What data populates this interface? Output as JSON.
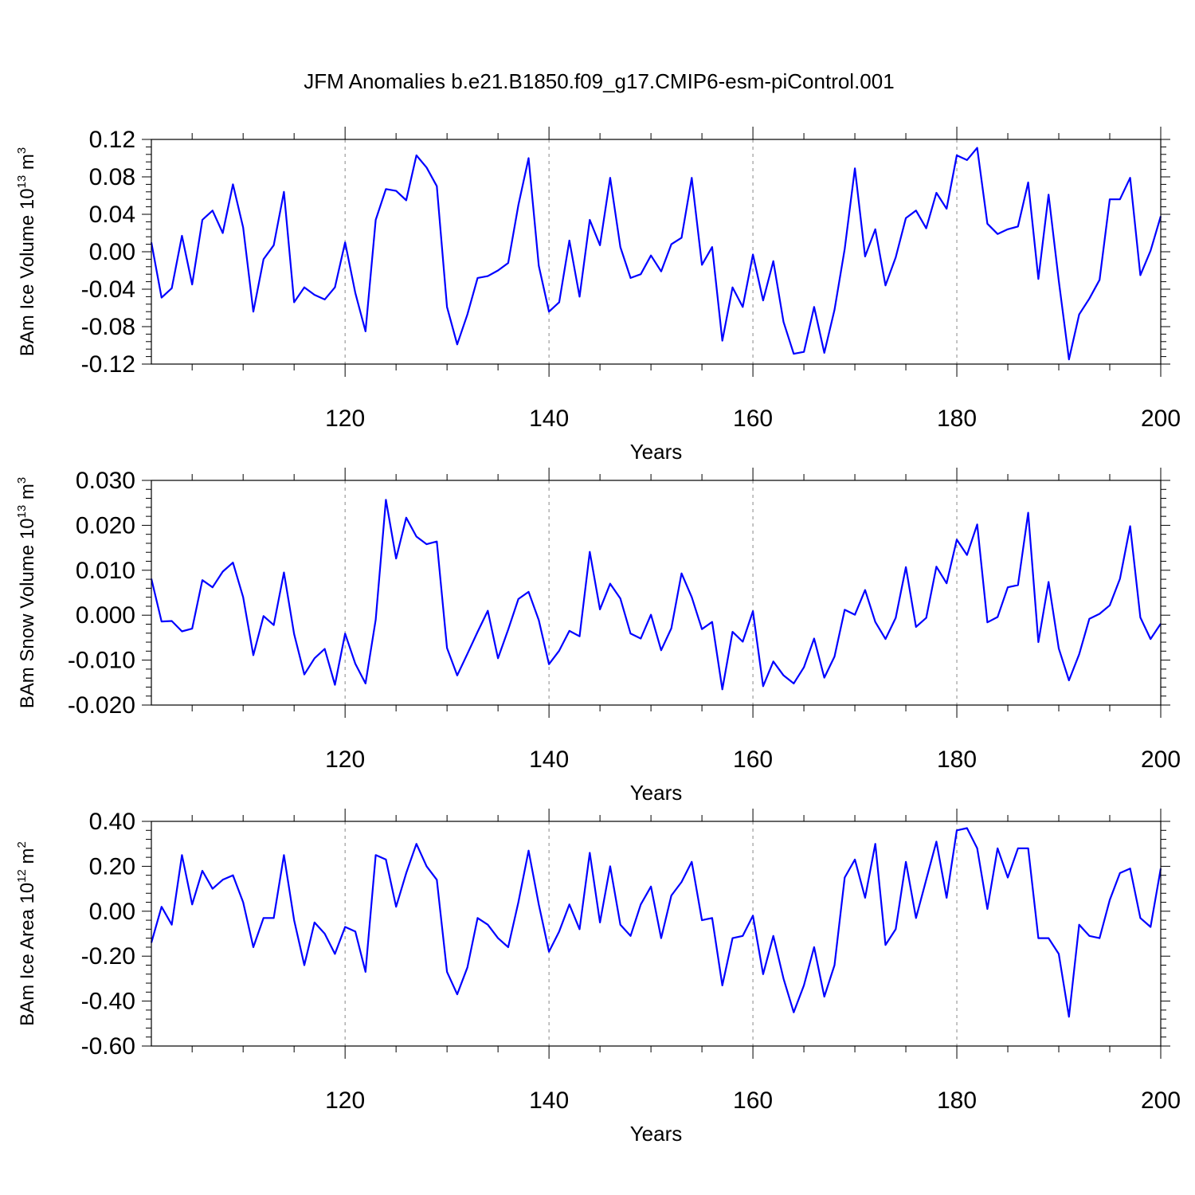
{
  "title": "JFM Anomalies b.e21.B1850.f09_g17.CMIP6-esm-piControl.001",
  "chart_data": [
    {
      "type": "line",
      "ylabel": "BAm Ice Volume 10",
      "ylabel_exp": "13",
      "ylabel_unit": " m",
      "ylabel_unit_exp": "3",
      "xlabel": "Years",
      "xlim": [
        101,
        200
      ],
      "ylim": [
        -0.12,
        0.12
      ],
      "xticks": [
        120,
        140,
        160,
        180,
        200
      ],
      "xtick_labels": [
        "120",
        "140",
        "160",
        "180",
        "200"
      ],
      "yticks": [
        -0.12,
        -0.08,
        -0.04,
        0.0,
        0.04,
        0.08,
        0.12
      ],
      "ytick_labels": [
        "-0.12",
        "-0.08",
        "-0.04",
        "0.00",
        "0.04",
        "0.08",
        "0.12"
      ],
      "x_start": 101,
      "values": [
        0.01,
        -0.049,
        -0.039,
        0.017,
        -0.035,
        0.034,
        0.044,
        0.02,
        0.072,
        0.026,
        -0.064,
        -0.008,
        0.007,
        0.064,
        -0.054,
        -0.038,
        -0.046,
        -0.051,
        -0.038,
        0.01,
        -0.044,
        -0.085,
        0.034,
        0.067,
        0.065,
        0.055,
        0.103,
        0.09,
        0.07,
        -0.059,
        -0.099,
        -0.067,
        -0.028,
        -0.026,
        -0.02,
        -0.012,
        0.05,
        0.1,
        -0.015,
        -0.064,
        -0.054,
        0.012,
        -0.048,
        0.034,
        0.007,
        0.079,
        0.005,
        -0.028,
        -0.024,
        -0.004,
        -0.021,
        0.008,
        0.015,
        0.079,
        -0.014,
        0.005,
        -0.095,
        -0.038,
        -0.059,
        -0.003,
        -0.052,
        -0.01,
        -0.075,
        -0.109,
        -0.107,
        -0.059,
        -0.108,
        -0.062,
        0.003,
        0.089,
        -0.005,
        0.024,
        -0.036,
        -0.006,
        0.036,
        0.044,
        0.025,
        0.063,
        0.046,
        0.103,
        0.098,
        0.111,
        0.03,
        0.019,
        0.024,
        0.027,
        0.074,
        -0.029,
        0.061,
        -0.031,
        -0.115,
        -0.067,
        -0.05,
        -0.03,
        0.056,
        0.056,
        0.079,
        -0.025,
        0.001,
        0.038
      ]
    },
    {
      "type": "line",
      "ylabel": "BAm Snow Volume 10",
      "ylabel_exp": "13",
      "ylabel_unit": " m",
      "ylabel_unit_exp": "3",
      "xlabel": "Years",
      "xlim": [
        101,
        200
      ],
      "ylim": [
        -0.02,
        0.03
      ],
      "xticks": [
        120,
        140,
        160,
        180,
        200
      ],
      "xtick_labels": [
        "120",
        "140",
        "160",
        "180",
        "200"
      ],
      "yticks": [
        -0.02,
        -0.01,
        0.0,
        0.01,
        0.02,
        0.03
      ],
      "ytick_labels": [
        "-0.020",
        "-0.010",
        "0.000",
        "0.010",
        "0.020",
        "0.030"
      ],
      "x_start": 101,
      "values": [
        0.0081,
        -0.0014,
        -0.0013,
        -0.0036,
        -0.003,
        0.0078,
        0.0062,
        0.0097,
        0.0117,
        0.004,
        -0.0089,
        -0.0002,
        -0.0022,
        0.0095,
        -0.0042,
        -0.0132,
        -0.0096,
        -0.0075,
        -0.0155,
        -0.0041,
        -0.0108,
        -0.0152,
        -0.001,
        0.0257,
        0.0126,
        0.0217,
        0.0175,
        0.0158,
        0.0164,
        -0.0073,
        -0.0134,
        -0.0086,
        -0.0037,
        0.001,
        -0.0096,
        -0.0032,
        0.0036,
        0.0052,
        -0.0011,
        -0.0109,
        -0.0079,
        -0.0035,
        -0.0047,
        0.0141,
        0.0013,
        0.007,
        0.0037,
        -0.0041,
        -0.0052,
        0.0001,
        -0.0078,
        -0.0029,
        0.0093,
        0.004,
        -0.0031,
        -0.0015,
        -0.0165,
        -0.0037,
        -0.0059,
        0.0009,
        -0.0158,
        -0.0103,
        -0.0134,
        -0.0152,
        -0.0116,
        -0.0052,
        -0.0139,
        -0.0092,
        0.0012,
        0.0001,
        0.0056,
        -0.0015,
        -0.0053,
        -0.0006,
        0.0107,
        -0.0026,
        -0.0006,
        0.0108,
        0.0071,
        0.0168,
        0.0134,
        0.0202,
        -0.0016,
        -0.0004,
        0.0062,
        0.0067,
        0.0228,
        -0.006,
        0.0074,
        -0.0074,
        -0.0145,
        -0.0087,
        -0.0008,
        0.0003,
        0.0022,
        0.0081,
        0.0198,
        -0.0005,
        -0.0053,
        -0.0019
      ]
    },
    {
      "type": "line",
      "ylabel": "BAm Ice Area 10",
      "ylabel_exp": "12",
      "ylabel_unit": " m",
      "ylabel_unit_exp": "2",
      "xlabel": "Years",
      "xlim": [
        101,
        200
      ],
      "ylim": [
        -0.6,
        0.4
      ],
      "xticks": [
        120,
        140,
        160,
        180,
        200
      ],
      "xtick_labels": [
        "120",
        "140",
        "160",
        "180",
        "200"
      ],
      "yticks": [
        -0.6,
        -0.4,
        -0.2,
        0.0,
        0.2,
        0.4
      ],
      "ytick_labels": [
        "-0.60",
        "-0.40",
        "-0.20",
        "0.00",
        "0.20",
        "0.40"
      ],
      "x_start": 101,
      "values": [
        -0.14,
        0.02,
        -0.06,
        0.25,
        0.03,
        0.18,
        0.1,
        0.14,
        0.16,
        0.04,
        -0.16,
        -0.03,
        -0.03,
        0.25,
        -0.04,
        -0.24,
        -0.05,
        -0.1,
        -0.19,
        -0.07,
        -0.09,
        -0.27,
        0.25,
        0.23,
        0.02,
        0.17,
        0.3,
        0.2,
        0.14,
        -0.27,
        -0.37,
        -0.25,
        -0.03,
        -0.06,
        -0.12,
        -0.16,
        0.04,
        0.27,
        0.03,
        -0.18,
        -0.09,
        0.03,
        -0.08,
        0.26,
        -0.05,
        0.2,
        -0.06,
        -0.11,
        0.03,
        0.11,
        -0.12,
        0.07,
        0.13,
        0.22,
        -0.04,
        -0.03,
        -0.33,
        -0.12,
        -0.11,
        -0.02,
        -0.28,
        -0.11,
        -0.3,
        -0.45,
        -0.33,
        -0.16,
        -0.38,
        -0.24,
        0.15,
        0.23,
        0.06,
        0.3,
        -0.15,
        -0.08,
        0.22,
        -0.03,
        0.14,
        0.31,
        0.06,
        0.36,
        0.37,
        0.28,
        0.01,
        0.28,
        0.15,
        0.28,
        0.28,
        -0.12,
        -0.12,
        -0.19,
        -0.47,
        -0.06,
        -0.11,
        -0.12,
        0.05,
        0.17,
        0.19,
        -0.03,
        -0.07,
        0.19
      ]
    }
  ]
}
